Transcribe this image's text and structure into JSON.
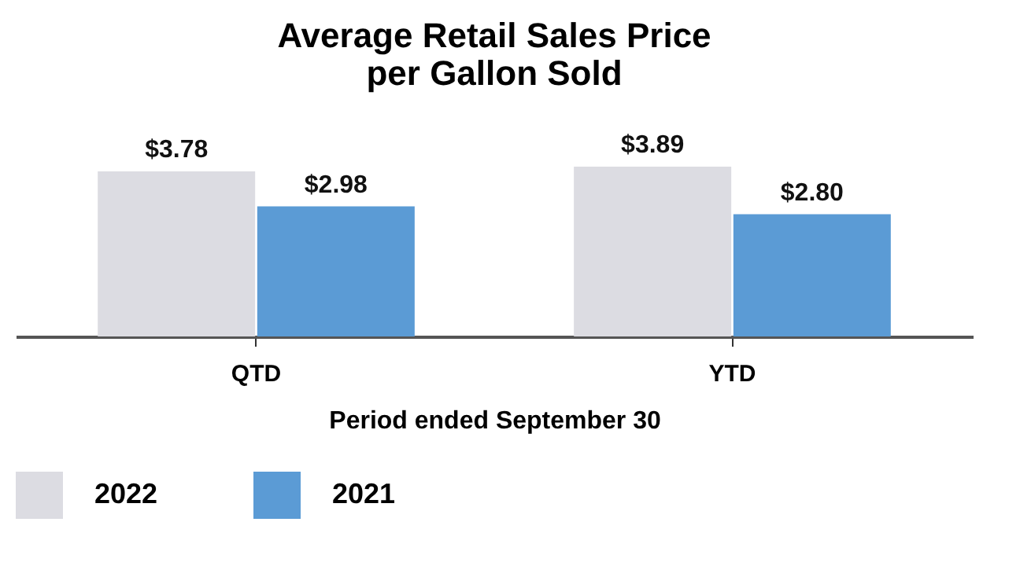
{
  "chart_data": {
    "type": "bar",
    "title": "Average Retail Sales Price\nper Gallon Sold",
    "xlabel": "Period ended September 30",
    "categories": [
      "QTD",
      "YTD"
    ],
    "series": [
      {
        "name": "2022",
        "color": "#dcdce2",
        "values": [
          3.78,
          3.89
        ],
        "value_labels": [
          "$3.78",
          "$3.89"
        ]
      },
      {
        "name": "2021",
        "color": "#5b9bd5",
        "values": [
          2.98,
          2.8
        ],
        "value_labels": [
          "$2.98",
          "$2.80"
        ]
      }
    ],
    "legend": "bottom",
    "grid": false,
    "tick_labels": "x"
  }
}
